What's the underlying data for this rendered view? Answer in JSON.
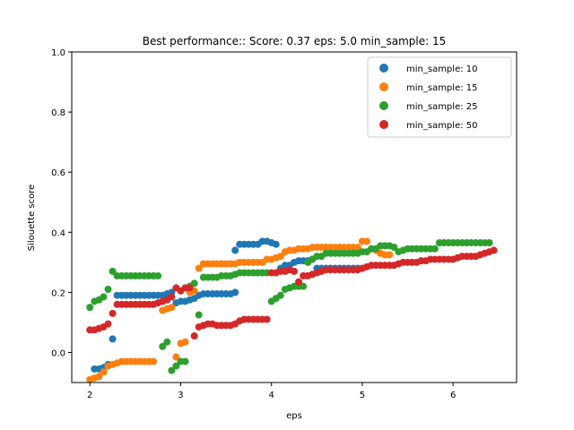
{
  "chart_data": {
    "type": "scatter",
    "title": "Best performance:: Score: 0.37 eps: 5.0 min_sample: 15",
    "xlabel": "eps",
    "ylabel": "Silouette score",
    "xlim": [
      1.8,
      6.7
    ],
    "ylim": [
      -0.1,
      1.0
    ],
    "xticks": [
      2,
      3,
      4,
      5,
      6
    ],
    "yticks": [
      0.0,
      0.2,
      0.4,
      0.6,
      0.8,
      1.0
    ],
    "ytick_labels": [
      "0.0",
      "0.2",
      "0.4",
      "0.6",
      "0.8",
      "1.0"
    ],
    "xtick_labels": [
      "2",
      "3",
      "4",
      "5",
      "6"
    ],
    "grid": false,
    "legend_position": "top-right",
    "series": [
      {
        "name": "min_sample: 10",
        "color": "#1f77b4",
        "points": [
          [
            2.05,
            -0.055
          ],
          [
            2.1,
            -0.055
          ],
          [
            2.15,
            -0.05
          ],
          [
            2.2,
            -0.04
          ],
          [
            2.25,
            0.045
          ],
          [
            2.3,
            0.19
          ],
          [
            2.35,
            0.19
          ],
          [
            2.4,
            0.19
          ],
          [
            2.45,
            0.19
          ],
          [
            2.5,
            0.19
          ],
          [
            2.55,
            0.19
          ],
          [
            2.6,
            0.19
          ],
          [
            2.65,
            0.19
          ],
          [
            2.7,
            0.19
          ],
          [
            2.75,
            0.19
          ],
          [
            2.8,
            0.19
          ],
          [
            2.85,
            0.195
          ],
          [
            2.9,
            0.2
          ],
          [
            2.95,
            0.165
          ],
          [
            3.0,
            0.17
          ],
          [
            3.05,
            0.17
          ],
          [
            3.1,
            0.175
          ],
          [
            3.15,
            0.18
          ],
          [
            3.2,
            0.19
          ],
          [
            3.25,
            0.195
          ],
          [
            3.3,
            0.195
          ],
          [
            3.35,
            0.195
          ],
          [
            3.4,
            0.195
          ],
          [
            3.45,
            0.195
          ],
          [
            3.5,
            0.195
          ],
          [
            3.55,
            0.195
          ],
          [
            3.6,
            0.2
          ],
          [
            3.6,
            0.34
          ],
          [
            3.65,
            0.36
          ],
          [
            3.7,
            0.36
          ],
          [
            3.75,
            0.36
          ],
          [
            3.8,
            0.36
          ],
          [
            3.85,
            0.36
          ],
          [
            3.9,
            0.37
          ],
          [
            3.95,
            0.37
          ],
          [
            4.0,
            0.365
          ],
          [
            4.05,
            0.36
          ],
          [
            4.1,
            0.28
          ],
          [
            4.15,
            0.29
          ],
          [
            4.2,
            0.29
          ],
          [
            4.25,
            0.3
          ],
          [
            4.3,
            0.305
          ],
          [
            4.35,
            0.305
          ],
          [
            4.4,
            0.305
          ],
          [
            4.45,
            0.31
          ],
          [
            4.5,
            0.28
          ],
          [
            4.55,
            0.28
          ],
          [
            4.6,
            0.28
          ],
          [
            4.65,
            0.28
          ],
          [
            4.7,
            0.28
          ],
          [
            4.75,
            0.28
          ],
          [
            4.8,
            0.28
          ],
          [
            4.85,
            0.28
          ],
          [
            4.9,
            0.28
          ],
          [
            4.95,
            0.28
          ],
          [
            5.0,
            0.28
          ]
        ]
      },
      {
        "name": "min_sample: 15",
        "color": "#ff7f0e",
        "points": [
          [
            2.0,
            -0.09
          ],
          [
            2.05,
            -0.085
          ],
          [
            2.1,
            -0.08
          ],
          [
            2.15,
            -0.065
          ],
          [
            2.2,
            -0.045
          ],
          [
            2.25,
            -0.04
          ],
          [
            2.3,
            -0.035
          ],
          [
            2.35,
            -0.03
          ],
          [
            2.4,
            -0.03
          ],
          [
            2.45,
            -0.03
          ],
          [
            2.5,
            -0.03
          ],
          [
            2.55,
            -0.03
          ],
          [
            2.6,
            -0.03
          ],
          [
            2.65,
            -0.03
          ],
          [
            2.7,
            -0.03
          ],
          [
            2.8,
            0.14
          ],
          [
            2.85,
            0.145
          ],
          [
            2.9,
            0.15
          ],
          [
            2.95,
            -0.015
          ],
          [
            3.0,
            0.03
          ],
          [
            3.05,
            0.035
          ],
          [
            3.1,
            0.2
          ],
          [
            3.15,
            0.205
          ],
          [
            3.2,
            0.28
          ],
          [
            3.25,
            0.295
          ],
          [
            3.3,
            0.295
          ],
          [
            3.35,
            0.295
          ],
          [
            3.4,
            0.295
          ],
          [
            3.45,
            0.295
          ],
          [
            3.5,
            0.295
          ],
          [
            3.55,
            0.295
          ],
          [
            3.6,
            0.295
          ],
          [
            3.65,
            0.3
          ],
          [
            3.7,
            0.3
          ],
          [
            3.75,
            0.3
          ],
          [
            3.8,
            0.3
          ],
          [
            3.85,
            0.3
          ],
          [
            3.9,
            0.3
          ],
          [
            3.95,
            0.31
          ],
          [
            4.0,
            0.31
          ],
          [
            4.05,
            0.315
          ],
          [
            4.1,
            0.32
          ],
          [
            4.15,
            0.335
          ],
          [
            4.2,
            0.34
          ],
          [
            4.25,
            0.34
          ],
          [
            4.3,
            0.345
          ],
          [
            4.35,
            0.345
          ],
          [
            4.4,
            0.345
          ],
          [
            4.45,
            0.35
          ],
          [
            4.5,
            0.35
          ],
          [
            4.55,
            0.35
          ],
          [
            4.6,
            0.35
          ],
          [
            4.65,
            0.35
          ],
          [
            4.7,
            0.35
          ],
          [
            4.75,
            0.35
          ],
          [
            4.8,
            0.35
          ],
          [
            4.85,
            0.35
          ],
          [
            4.9,
            0.35
          ],
          [
            4.95,
            0.35
          ],
          [
            5.0,
            0.37
          ],
          [
            5.05,
            0.37
          ],
          [
            5.1,
            0.345
          ],
          [
            5.15,
            0.34
          ],
          [
            5.2,
            0.33
          ],
          [
            5.25,
            0.325
          ],
          [
            5.3,
            0.325
          ]
        ]
      },
      {
        "name": "min_sample: 25",
        "color": "#2ca02c",
        "points": [
          [
            2.0,
            0.15
          ],
          [
            2.05,
            0.17
          ],
          [
            2.1,
            0.175
          ],
          [
            2.15,
            0.185
          ],
          [
            2.2,
            0.21
          ],
          [
            2.25,
            0.27
          ],
          [
            2.3,
            0.255
          ],
          [
            2.35,
            0.255
          ],
          [
            2.4,
            0.255
          ],
          [
            2.45,
            0.255
          ],
          [
            2.5,
            0.255
          ],
          [
            2.55,
            0.255
          ],
          [
            2.6,
            0.255
          ],
          [
            2.65,
            0.255
          ],
          [
            2.7,
            0.255
          ],
          [
            2.75,
            0.255
          ],
          [
            2.8,
            0.02
          ],
          [
            2.85,
            0.035
          ],
          [
            2.9,
            -0.06
          ],
          [
            2.95,
            -0.045
          ],
          [
            3.0,
            -0.03
          ],
          [
            3.05,
            -0.03
          ],
          [
            3.1,
            0.22
          ],
          [
            3.15,
            0.23
          ],
          [
            3.2,
            0.125
          ],
          [
            3.25,
            0.25
          ],
          [
            3.3,
            0.25
          ],
          [
            3.35,
            0.25
          ],
          [
            3.4,
            0.25
          ],
          [
            3.45,
            0.255
          ],
          [
            3.5,
            0.255
          ],
          [
            3.55,
            0.255
          ],
          [
            3.6,
            0.26
          ],
          [
            3.65,
            0.265
          ],
          [
            3.7,
            0.265
          ],
          [
            3.75,
            0.265
          ],
          [
            3.8,
            0.265
          ],
          [
            3.85,
            0.265
          ],
          [
            3.9,
            0.265
          ],
          [
            3.95,
            0.265
          ],
          [
            4.0,
            0.17
          ],
          [
            4.05,
            0.18
          ],
          [
            4.1,
            0.19
          ],
          [
            4.15,
            0.21
          ],
          [
            4.2,
            0.215
          ],
          [
            4.25,
            0.22
          ],
          [
            4.3,
            0.22
          ],
          [
            4.35,
            0.22
          ],
          [
            4.4,
            0.3
          ],
          [
            4.45,
            0.31
          ],
          [
            4.5,
            0.32
          ],
          [
            4.55,
            0.32
          ],
          [
            4.6,
            0.33
          ],
          [
            4.65,
            0.33
          ],
          [
            4.7,
            0.33
          ],
          [
            4.75,
            0.33
          ],
          [
            4.8,
            0.33
          ],
          [
            4.85,
            0.33
          ],
          [
            4.9,
            0.33
          ],
          [
            4.95,
            0.33
          ],
          [
            5.0,
            0.335
          ],
          [
            5.05,
            0.335
          ],
          [
            5.1,
            0.345
          ],
          [
            5.15,
            0.345
          ],
          [
            5.2,
            0.355
          ],
          [
            5.25,
            0.355
          ],
          [
            5.3,
            0.355
          ],
          [
            5.35,
            0.35
          ],
          [
            5.4,
            0.335
          ],
          [
            5.45,
            0.34
          ],
          [
            5.5,
            0.345
          ],
          [
            5.55,
            0.345
          ],
          [
            5.6,
            0.345
          ],
          [
            5.65,
            0.345
          ],
          [
            5.7,
            0.345
          ],
          [
            5.75,
            0.345
          ],
          [
            5.8,
            0.345
          ],
          [
            5.85,
            0.365
          ],
          [
            5.9,
            0.365
          ],
          [
            5.95,
            0.365
          ],
          [
            6.0,
            0.365
          ],
          [
            6.05,
            0.365
          ],
          [
            6.1,
            0.365
          ],
          [
            6.15,
            0.365
          ],
          [
            6.2,
            0.365
          ],
          [
            6.25,
            0.365
          ],
          [
            6.3,
            0.365
          ],
          [
            6.35,
            0.365
          ],
          [
            6.4,
            0.365
          ]
        ]
      },
      {
        "name": "min_sample: 50",
        "color": "#d62728",
        "points": [
          [
            2.0,
            0.075
          ],
          [
            2.05,
            0.075
          ],
          [
            2.1,
            0.08
          ],
          [
            2.15,
            0.085
          ],
          [
            2.2,
            0.095
          ],
          [
            2.25,
            0.13
          ],
          [
            2.3,
            0.16
          ],
          [
            2.35,
            0.16
          ],
          [
            2.4,
            0.16
          ],
          [
            2.45,
            0.16
          ],
          [
            2.5,
            0.16
          ],
          [
            2.55,
            0.16
          ],
          [
            2.6,
            0.16
          ],
          [
            2.65,
            0.16
          ],
          [
            2.7,
            0.16
          ],
          [
            2.75,
            0.165
          ],
          [
            2.8,
            0.17
          ],
          [
            2.85,
            0.175
          ],
          [
            2.9,
            0.185
          ],
          [
            2.95,
            0.215
          ],
          [
            3.0,
            0.205
          ],
          [
            3.05,
            0.215
          ],
          [
            3.1,
            0.215
          ],
          [
            3.15,
            0.055
          ],
          [
            3.2,
            0.085
          ],
          [
            3.25,
            0.09
          ],
          [
            3.3,
            0.095
          ],
          [
            3.35,
            0.095
          ],
          [
            3.4,
            0.09
          ],
          [
            3.45,
            0.09
          ],
          [
            3.5,
            0.09
          ],
          [
            3.55,
            0.09
          ],
          [
            3.6,
            0.095
          ],
          [
            3.65,
            0.105
          ],
          [
            3.7,
            0.11
          ],
          [
            3.75,
            0.11
          ],
          [
            3.8,
            0.11
          ],
          [
            3.85,
            0.11
          ],
          [
            3.9,
            0.11
          ],
          [
            3.95,
            0.11
          ],
          [
            4.0,
            0.265
          ],
          [
            4.05,
            0.265
          ],
          [
            4.1,
            0.27
          ],
          [
            4.15,
            0.27
          ],
          [
            4.2,
            0.275
          ],
          [
            4.25,
            0.27
          ],
          [
            4.3,
            0.235
          ],
          [
            4.35,
            0.255
          ],
          [
            4.4,
            0.255
          ],
          [
            4.45,
            0.26
          ],
          [
            4.5,
            0.265
          ],
          [
            4.55,
            0.27
          ],
          [
            4.6,
            0.275
          ],
          [
            4.65,
            0.275
          ],
          [
            4.7,
            0.275
          ],
          [
            4.75,
            0.275
          ],
          [
            4.8,
            0.275
          ],
          [
            4.85,
            0.275
          ],
          [
            4.9,
            0.275
          ],
          [
            4.95,
            0.275
          ],
          [
            5.0,
            0.28
          ],
          [
            5.05,
            0.285
          ],
          [
            5.1,
            0.29
          ],
          [
            5.15,
            0.29
          ],
          [
            5.2,
            0.29
          ],
          [
            5.25,
            0.29
          ],
          [
            5.3,
            0.29
          ],
          [
            5.35,
            0.29
          ],
          [
            5.4,
            0.295
          ],
          [
            5.45,
            0.3
          ],
          [
            5.5,
            0.3
          ],
          [
            5.55,
            0.3
          ],
          [
            5.6,
            0.3
          ],
          [
            5.65,
            0.305
          ],
          [
            5.7,
            0.305
          ],
          [
            5.75,
            0.31
          ],
          [
            5.8,
            0.31
          ],
          [
            5.85,
            0.31
          ],
          [
            5.9,
            0.31
          ],
          [
            5.95,
            0.31
          ],
          [
            6.0,
            0.31
          ],
          [
            6.05,
            0.315
          ],
          [
            6.1,
            0.32
          ],
          [
            6.15,
            0.32
          ],
          [
            6.2,
            0.32
          ],
          [
            6.25,
            0.32
          ],
          [
            6.3,
            0.325
          ],
          [
            6.35,
            0.33
          ],
          [
            6.4,
            0.335
          ],
          [
            6.45,
            0.34
          ]
        ]
      }
    ]
  }
}
